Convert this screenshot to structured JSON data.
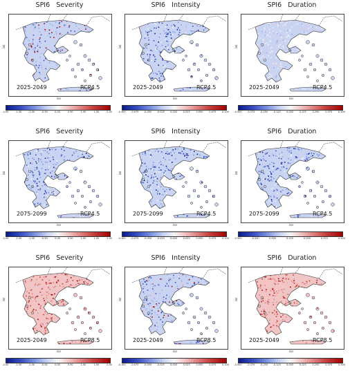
{
  "colors": {
    "strong_blue": "#0a1a8c",
    "light_blue": "#c9d4f2",
    "white": "#f5f5f5",
    "light_red": "#f2c4c4",
    "strong_red": "#a60000",
    "border": "#333333"
  },
  "axis_labels": {
    "x": "lon",
    "y": "lat"
  },
  "panels": [
    {
      "title": "SPI6   Severity",
      "period": "2025-2049",
      "scenario": "RCP4.5",
      "dominant": "mixed",
      "ticks": [
        "-2.00",
        "-1.50",
        "-1.00",
        "-0.50",
        "0.00",
        "0.50",
        "1.00",
        "1.50",
        "2.00"
      ]
    },
    {
      "title": "SPI6   Intensity",
      "period": "2025-2049",
      "scenario": "RCP4.5",
      "dominant": "blue",
      "ticks": [
        "-0.100",
        "-0.075",
        "-0.050",
        "-0.025",
        "0.000",
        "0.025",
        "0.050",
        "0.075",
        "0.100"
      ]
    },
    {
      "title": "SPI6   Duration",
      "period": "2025-2049",
      "scenario": "RCP4.5",
      "dominant": "light",
      "ticks": [
        "-0.500",
        "-0.375",
        "-0.250",
        "-0.125",
        "0.000",
        "0.125",
        "0.250",
        "0.375",
        "0.500"
      ]
    },
    {
      "title": "SPI6   Severity",
      "period": "2075-2099",
      "scenario": "RCP4.5",
      "dominant": "blue",
      "ticks": [
        "-2.00",
        "-1.50",
        "-1.00",
        "-0.50",
        "0.00",
        "0.50",
        "1.00",
        "1.50",
        "2.00"
      ]
    },
    {
      "title": "SPI6   Intensity",
      "period": "2075-2099",
      "scenario": "RCP4.5",
      "dominant": "blue",
      "ticks": [
        "-0.100",
        "-0.075",
        "-0.050",
        "-0.025",
        "0.000",
        "0.025",
        "0.050",
        "0.075",
        "0.100"
      ]
    },
    {
      "title": "SPI6   Duration",
      "period": "2075-2099",
      "scenario": "RCP4.5",
      "dominant": "blue",
      "ticks": [
        "-0.500",
        "-0.250",
        "0.000",
        "0.125",
        "0.250",
        "0.375",
        "0.500"
      ]
    },
    {
      "title": "SPI6   Severity",
      "period": "2025-2049",
      "scenario": "RCP8.5",
      "dominant": "red",
      "ticks": [
        "-2.00",
        "-1.50",
        "-1.00",
        "-0.50",
        "0.00",
        "0.50",
        "1.00",
        "1.50",
        "2.00"
      ]
    },
    {
      "title": "SPI6   Intensity",
      "period": "2025-2049",
      "scenario": "RCP8.5",
      "dominant": "mixed",
      "ticks": [
        "-0.100",
        "-0.075",
        "-0.050",
        "-0.025",
        "0.000",
        "0.025",
        "0.050",
        "0.075",
        "0.100"
      ]
    },
    {
      "title": "SPI6   Duration",
      "period": "2025-2049",
      "scenario": "RCP8.5",
      "dominant": "red",
      "ticks": [
        "-0.500",
        "-0.375",
        "-0.250",
        "-0.125",
        "0.000",
        "0.125",
        "0.250",
        "0.375",
        "0.500"
      ]
    }
  ]
}
